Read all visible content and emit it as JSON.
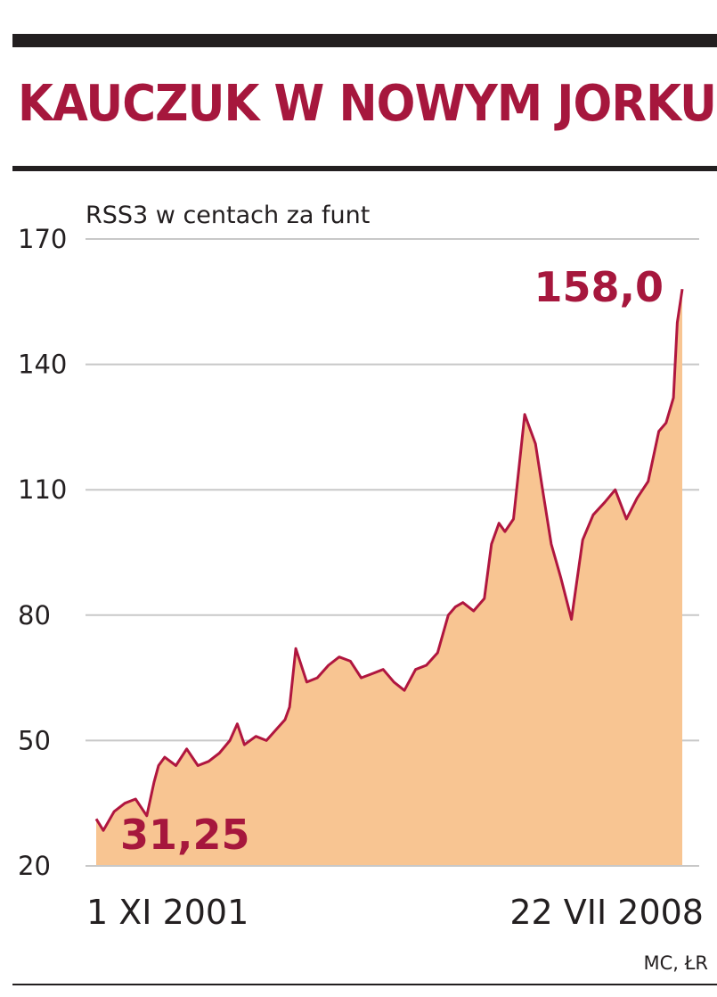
{
  "title": "KAUCZUK W NOWYM JORKU",
  "source": "MC, ŁR",
  "colors": {
    "accent": "#a6173d",
    "fill": "#f8c592",
    "line": "#b0163f",
    "grid": "#c8c8c8",
    "rule": "#231f20"
  },
  "chart_data": {
    "type": "area",
    "title": "KAUCZUK W NOWYM JORKU",
    "ylabel": "RSS3 w centach za funt",
    "xlabel": "",
    "ylim": [
      20,
      170
    ],
    "yticks": [
      20,
      50,
      80,
      110,
      140,
      170
    ],
    "ytick_labels": [
      "20",
      "50",
      "80",
      "110",
      "140",
      "170"
    ],
    "xtick_labels": [
      "1 XI 2001",
      "22 VII 2008"
    ],
    "grid": true,
    "annotations": [
      {
        "text": "31,25",
        "value": 31.25,
        "at": "start"
      },
      {
        "text": "158,0",
        "value": 158.0,
        "at": "end"
      }
    ],
    "series": [
      {
        "x": [
          "2001-11-01",
          "2001-12-01",
          "2002-01-15",
          "2002-03-01",
          "2002-04-15",
          "2002-06-01",
          "2002-07-01",
          "2002-07-20",
          "2002-08-15",
          "2002-10-01",
          "2002-11-15",
          "2003-01-01",
          "2003-02-15",
          "2003-04-01",
          "2003-05-15",
          "2003-06-15",
          "2003-07-15",
          "2003-09-01",
          "2003-10-15",
          "2003-12-01",
          "2004-01-01",
          "2004-01-20",
          "2004-02-15",
          "2004-04-01",
          "2004-05-15",
          "2004-07-01",
          "2004-08-15",
          "2004-10-01",
          "2004-11-15",
          "2005-01-01",
          "2005-02-15",
          "2005-04-01",
          "2005-05-15",
          "2005-07-01",
          "2005-08-15",
          "2005-10-01",
          "2005-11-15",
          "2005-12-15",
          "2006-01-15",
          "2006-03-01",
          "2006-04-15",
          "2006-05-15",
          "2006-06-15",
          "2006-07-10",
          "2006-08-15",
          "2006-10-01",
          "2006-11-15",
          "2006-12-15",
          "2007-01-20",
          "2007-03-01",
          "2007-04-15",
          "2007-06-01",
          "2007-07-15",
          "2007-09-01",
          "2007-10-15",
          "2007-12-01",
          "2008-01-15",
          "2008-03-01",
          "2008-04-15",
          "2008-05-15",
          "2008-06-15",
          "2008-07-01",
          "2008-07-22"
        ],
        "values": [
          31.25,
          28.5,
          33,
          35,
          36,
          32,
          40,
          44,
          46,
          44,
          48,
          44,
          45,
          47,
          50,
          54,
          49,
          51,
          50,
          53,
          55,
          58,
          72,
          64,
          65,
          68,
          70,
          69,
          65,
          66,
          67,
          64,
          62,
          67,
          68,
          71,
          80,
          82,
          83,
          81,
          84,
          97,
          102,
          100,
          103,
          128,
          121,
          110,
          97,
          89,
          79,
          98,
          104,
          107,
          110,
          103,
          108,
          112,
          124,
          126,
          132,
          150,
          158
        ]
      }
    ]
  }
}
